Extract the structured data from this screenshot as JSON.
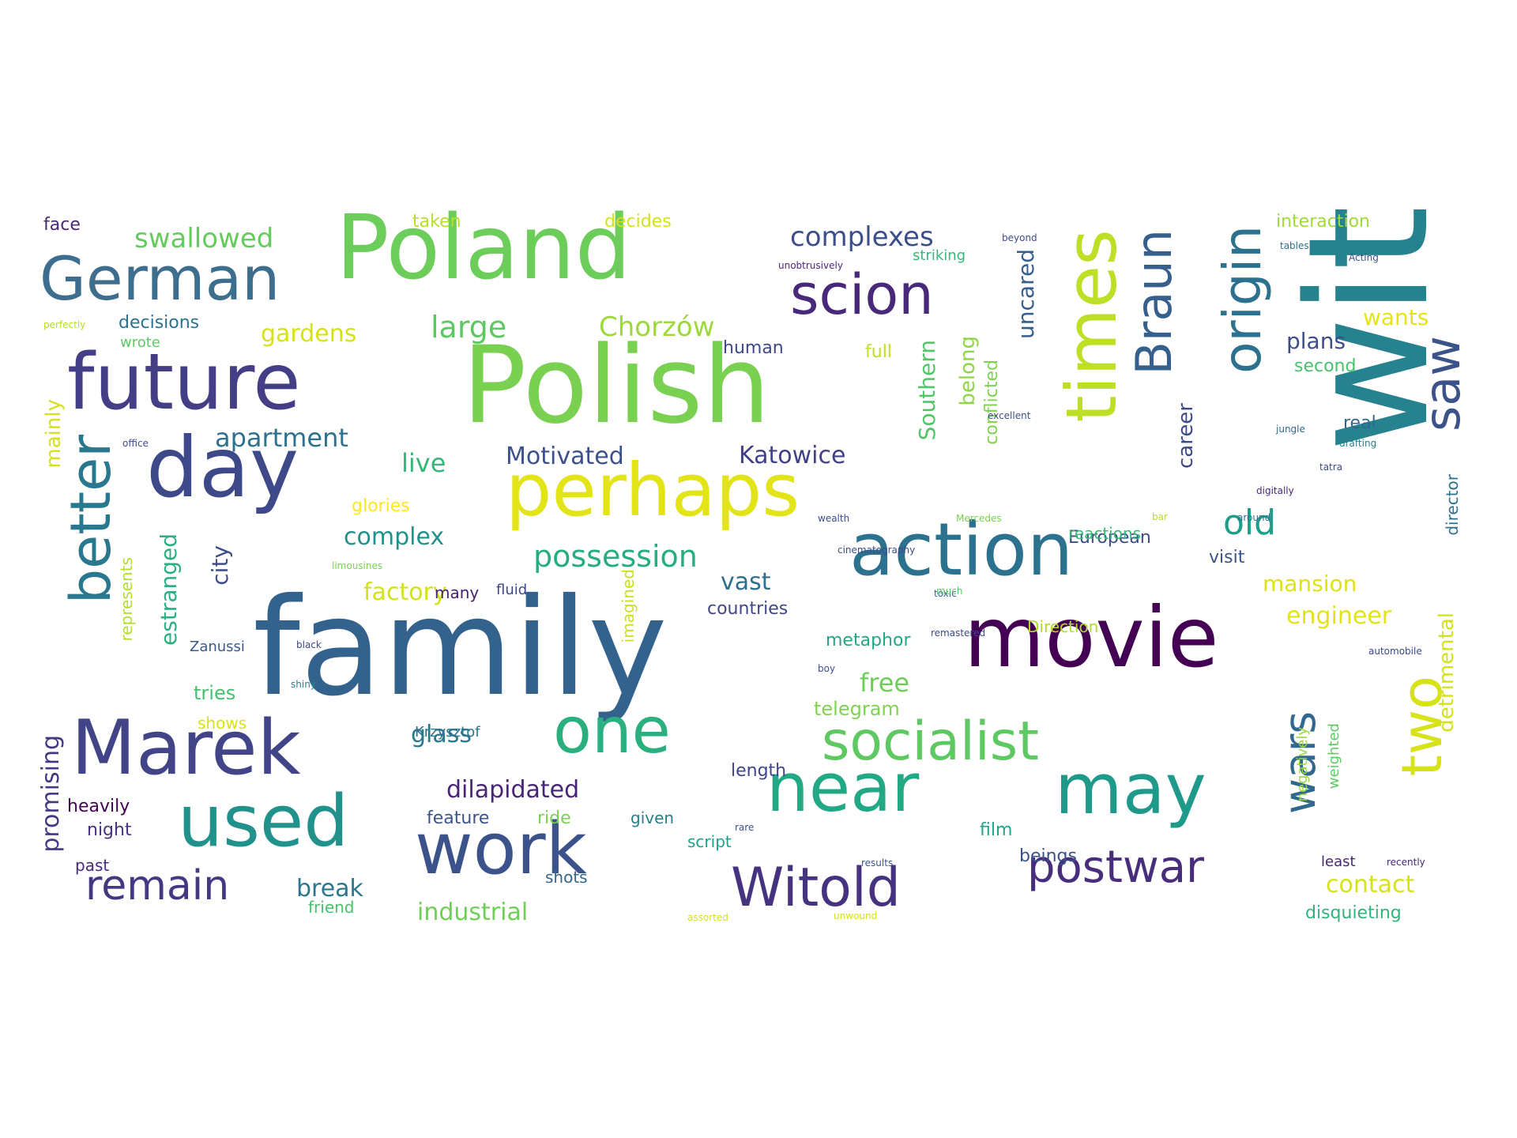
{
  "words": [
    {
      "text": "family",
      "color": "#33628d"
    },
    {
      "text": "Polish",
      "color": "#7ad151"
    },
    {
      "text": "wit",
      "color": "#26828e"
    },
    {
      "text": "Poland",
      "color": "#6ccd5a"
    },
    {
      "text": "movie",
      "color": "#440154"
    },
    {
      "text": "action",
      "color": "#2c728e"
    },
    {
      "text": "day",
      "color": "#3e4989"
    },
    {
      "text": "perhaps",
      "color": "#e3e418"
    },
    {
      "text": "future",
      "color": "#433e85"
    },
    {
      "text": "Marek",
      "color": "#414487"
    },
    {
      "text": "work",
      "color": "#3b528b"
    },
    {
      "text": "used",
      "color": "#21918c"
    },
    {
      "text": "near",
      "color": "#22a884"
    },
    {
      "text": "may",
      "color": "#1f9a8a"
    },
    {
      "text": "Witold",
      "color": "#46337f"
    },
    {
      "text": "times",
      "color": "#bddf26"
    },
    {
      "text": "one",
      "color": "#2ab07f"
    },
    {
      "text": "socialist",
      "color": "#5ec962"
    },
    {
      "text": "German",
      "color": "#3e6e8e"
    },
    {
      "text": "scion",
      "color": "#482878"
    },
    {
      "text": "better",
      "color": "#29788e"
    },
    {
      "text": "origin",
      "color": "#2c718e"
    },
    {
      "text": "Braun",
      "color": "#355f8d"
    },
    {
      "text": "two",
      "color": "#d8e219"
    },
    {
      "text": "saw",
      "color": "#3b528b"
    },
    {
      "text": "postwar",
      "color": "#472d7b"
    },
    {
      "text": "wars",
      "color": "#31688e"
    },
    {
      "text": "remain",
      "color": "#453882"
    },
    {
      "text": "swallowed",
      "color": "#65cb5e"
    },
    {
      "text": "complexes",
      "color": "#3c4f8a"
    },
    {
      "text": "possession",
      "color": "#27ad81"
    },
    {
      "text": "old",
      "color": "#1f9e89"
    },
    {
      "text": "large",
      "color": "#5dc863"
    },
    {
      "text": "gardens",
      "color": "#d5e21a"
    },
    {
      "text": "Chorzów",
      "color": "#9dd93b"
    },
    {
      "text": "apartment",
      "color": "#2d718e"
    },
    {
      "text": "Motivated",
      "color": "#3b518b"
    },
    {
      "text": "Katowice",
      "color": "#424086"
    },
    {
      "text": "live",
      "color": "#35b779"
    },
    {
      "text": "complex",
      "color": "#21918c"
    },
    {
      "text": "factory",
      "color": "#d2e21b"
    },
    {
      "text": "vast",
      "color": "#2e6f8e"
    },
    {
      "text": "countries",
      "color": "#3f4788"
    },
    {
      "text": "Southern",
      "color": "#52c569"
    },
    {
      "text": "belong",
      "color": "#8ed645"
    },
    {
      "text": "uncared",
      "color": "#355e8d"
    },
    {
      "text": "conflicted",
      "color": "#7fd34e"
    },
    {
      "text": "career",
      "color": "#3e4989"
    },
    {
      "text": "plans",
      "color": "#3e4c8a"
    },
    {
      "text": "second",
      "color": "#4ac16d"
    },
    {
      "text": "wants",
      "color": "#e5e419"
    },
    {
      "text": "real",
      "color": "#31678e"
    },
    {
      "text": "mansion",
      "color": "#dde318"
    },
    {
      "text": "engineer",
      "color": "#e2e418"
    },
    {
      "text": "detrimental",
      "color": "#d2e21b"
    },
    {
      "text": "director",
      "color": "#2d708e"
    },
    {
      "text": "contact",
      "color": "#d8e219"
    },
    {
      "text": "disquieting",
      "color": "#2fb47c"
    },
    {
      "text": "least",
      "color": "#482475"
    },
    {
      "text": "weighted",
      "color": "#5ec962"
    },
    {
      "text": "negatively",
      "color": "#9bd93c"
    },
    {
      "text": "interaction",
      "color": "#a0da39"
    },
    {
      "text": "European",
      "color": "#3e4a89"
    },
    {
      "text": "visit",
      "color": "#3a538b"
    },
    {
      "text": "dilapidated",
      "color": "#482677"
    },
    {
      "text": "glass",
      "color": "#2a788e"
    },
    {
      "text": "industrial",
      "color": "#6ece58"
    },
    {
      "text": "break",
      "color": "#2a778e"
    },
    {
      "text": "free",
      "color": "#6ece58"
    },
    {
      "text": "telegram",
      "color": "#7fd34e"
    },
    {
      "text": "metaphor",
      "color": "#22a785"
    },
    {
      "text": "Direction",
      "color": "#addc30"
    },
    {
      "text": "estranged",
      "color": "#2ab07f"
    },
    {
      "text": "city",
      "color": "#3e4c8a"
    },
    {
      "text": "mainly",
      "color": "#d5e21a"
    },
    {
      "text": "promising",
      "color": "#453781"
    },
    {
      "text": "represents",
      "color": "#b5de2b"
    },
    {
      "text": "tries",
      "color": "#46c06f"
    },
    {
      "text": "shows",
      "color": "#d8e219"
    },
    {
      "text": "heavily",
      "color": "#440154"
    },
    {
      "text": "night",
      "color": "#46327e"
    },
    {
      "text": "past",
      "color": "#482878"
    },
    {
      "text": "friend",
      "color": "#4ac16d"
    },
    {
      "text": "full",
      "color": "#c0df25"
    },
    {
      "text": "human",
      "color": "#3e4989"
    },
    {
      "text": "glories",
      "color": "#fde725"
    },
    {
      "text": "reactions",
      "color": "#3bbb75"
    },
    {
      "text": "many",
      "color": "#482173"
    },
    {
      "text": "fluid",
      "color": "#3f4788"
    },
    {
      "text": "imagined",
      "color": "#c8e020"
    },
    {
      "text": "decisions",
      "color": "#2c728e"
    },
    {
      "text": "face",
      "color": "#482878"
    },
    {
      "text": "wrote",
      "color": "#5ec962"
    },
    {
      "text": "taken",
      "color": "#b8de29"
    },
    {
      "text": "decides",
      "color": "#d2e21b"
    },
    {
      "text": "striking",
      "color": "#35b779"
    },
    {
      "text": "length",
      "color": "#404588"
    },
    {
      "text": "feature",
      "color": "#3a548c"
    },
    {
      "text": "ride",
      "color": "#7ad151"
    },
    {
      "text": "given",
      "color": "#277f8e"
    },
    {
      "text": "script",
      "color": "#1f9e89"
    },
    {
      "text": "shots",
      "color": "#31688e"
    },
    {
      "text": "film",
      "color": "#20a386"
    },
    {
      "text": "beings",
      "color": "#3b528b"
    },
    {
      "text": "Krzysztof",
      "color": "#2c728e"
    },
    {
      "text": "Zanussi",
      "color": "#375b8d"
    },
    {
      "text": "perfectly",
      "color": "#b5de2b"
    },
    {
      "text": "office",
      "color": "#3e4c8a"
    },
    {
      "text": "limousines",
      "color": "#7ad151"
    },
    {
      "text": "black",
      "color": "#3f4889"
    },
    {
      "text": "shiny",
      "color": "#26828e"
    },
    {
      "text": "toxic",
      "color": "#31688e"
    },
    {
      "text": "boy",
      "color": "#3e4c8a"
    },
    {
      "text": "results",
      "color": "#3b528b"
    },
    {
      "text": "unwound",
      "color": "#d2e21b"
    },
    {
      "text": "remastered",
      "color": "#3e4a89"
    },
    {
      "text": "automobile",
      "color": "#3f4788"
    },
    {
      "text": "recently",
      "color": "#482878"
    },
    {
      "text": "digitally",
      "color": "#482878"
    },
    {
      "text": "drafting",
      "color": "#277f8e"
    },
    {
      "text": "jungle",
      "color": "#31688e"
    },
    {
      "text": "tatra",
      "color": "#3e4c8a"
    },
    {
      "text": "bar",
      "color": "#b8de29"
    },
    {
      "text": "around",
      "color": "#2c728e"
    },
    {
      "text": "cinematography",
      "color": "#3e4a89"
    },
    {
      "text": "much",
      "color": "#5ec962"
    },
    {
      "text": "excellent",
      "color": "#3e4c8a"
    },
    {
      "text": "unobtrusively",
      "color": "#482878"
    },
    {
      "text": "beyond",
      "color": "#3e4c8a"
    },
    {
      "text": "tables",
      "color": "#2c728e"
    },
    {
      "text": "Acting",
      "color": "#3e4c8a"
    },
    {
      "text": "wealth",
      "color": "#3e4c8a"
    },
    {
      "text": "Mercedes",
      "color": "#7ad151"
    },
    {
      "text": "rare",
      "color": "#3b528b"
    },
    {
      "text": "assorted",
      "color": "#d2e21b"
    }
  ]
}
